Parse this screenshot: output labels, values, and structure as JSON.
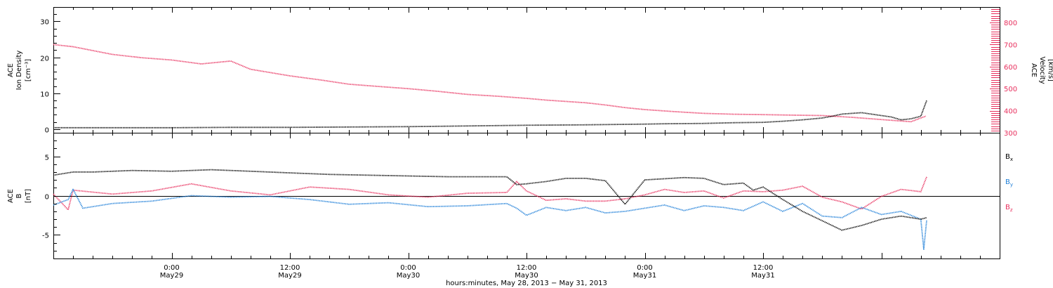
{
  "chart_data": [
    {
      "type": "scatter",
      "title": "",
      "ylabel_lines": [
        "ACE",
        "Ion Density",
        "[cm⁻³]"
      ],
      "ylabel_right_lines": [
        "ACE",
        "Velocity",
        "[km/s]"
      ],
      "ylim": [
        -1,
        34
      ],
      "y_ticks": [
        "0",
        "10",
        "20",
        "30"
      ],
      "ylim_right": [
        300,
        870
      ],
      "y_ticks_right": [
        "300",
        "400",
        "500",
        "600",
        "700",
        "800"
      ],
      "colors": {
        "density": "#000000",
        "velocity": "#e8305e"
      },
      "series": [
        {
          "axis": "left",
          "hours": [
            0,
            6,
            12,
            18,
            24,
            30,
            36,
            42,
            48,
            54,
            60,
            62,
            66,
            69,
            72,
            74,
            76,
            78,
            79,
            80,
            82,
            84,
            85,
            86,
            87,
            88,
            88.6
          ],
          "values": [
            0.4,
            0.4,
            0.4,
            0.5,
            0.5,
            0.6,
            0.7,
            0.9,
            1.1,
            1.2,
            1.4,
            1.5,
            1.6,
            1.8,
            1.9,
            2.2,
            2.6,
            3.1,
            3.6,
            4.2,
            4.6,
            3.8,
            3.4,
            2.6,
            2.9,
            3.6,
            8.0
          ]
        },
        {
          "axis": "right",
          "hours": [
            0,
            2,
            6,
            9,
            12,
            15,
            18,
            20,
            24,
            27,
            30,
            33,
            36,
            39,
            42,
            45,
            48,
            50,
            52,
            54,
            56,
            58,
            60,
            63,
            66,
            69,
            72,
            75,
            78,
            81,
            84,
            87,
            88.5
          ],
          "values": [
            700,
            690,
            655,
            640,
            630,
            612,
            625,
            588,
            558,
            540,
            520,
            510,
            500,
            488,
            474,
            466,
            456,
            448,
            442,
            436,
            426,
            414,
            405,
            396,
            388,
            384,
            382,
            380,
            378,
            370,
            360,
            350,
            375
          ]
        }
      ]
    },
    {
      "type": "scatter",
      "title": "",
      "ylabel_lines": [
        "ACE",
        "B",
        "[nT]"
      ],
      "ylim": [
        -8,
        8
      ],
      "y_ticks": [
        "-5",
        "0",
        "5"
      ],
      "zero_line": true,
      "legend": [
        {
          "name": "B",
          "sub": "x",
          "color": "#000000"
        },
        {
          "name": "B",
          "sub": "y",
          "color": "#1f7fd8"
        },
        {
          "name": "B",
          "sub": "z",
          "color": "#e8305e"
        }
      ],
      "series": [
        {
          "name": "Bx",
          "color": "#000000",
          "hours": [
            0,
            2,
            4,
            8,
            12,
            16,
            20,
            24,
            28,
            32,
            36,
            40,
            44,
            46,
            47,
            48,
            50,
            52,
            54,
            56,
            58,
            60,
            64,
            66,
            68,
            70,
            71,
            72,
            74,
            76,
            78,
            80,
            82,
            84,
            86,
            88,
            88.6
          ],
          "values": [
            2.6,
            3.0,
            3.0,
            3.2,
            3.1,
            3.3,
            3.1,
            2.9,
            2.7,
            2.6,
            2.5,
            2.4,
            2.4,
            2.4,
            1.4,
            1.5,
            1.8,
            2.2,
            2.2,
            1.9,
            -1.1,
            2.0,
            2.3,
            2.2,
            1.4,
            1.6,
            0.7,
            1.1,
            -0.5,
            -2.0,
            -3.2,
            -4.4,
            -3.8,
            -3.0,
            -2.6,
            -3.0,
            -2.8
          ]
        },
        {
          "name": "By",
          "color": "#1f7fd8",
          "hours": [
            0,
            1.5,
            2,
            3,
            6,
            10,
            14,
            18,
            22,
            26,
            30,
            34,
            38,
            42,
            46,
            47,
            48,
            49,
            50,
            52,
            54,
            56,
            58,
            60,
            62,
            64,
            66,
            68,
            70,
            72,
            74,
            76,
            78,
            80,
            82,
            84,
            86,
            88,
            88.3,
            88.6
          ],
          "values": [
            -1.2,
            -0.5,
            0.8,
            -1.6,
            -1.0,
            -0.7,
            0.0,
            -0.2,
            -0.1,
            -0.5,
            -1.1,
            -0.9,
            -1.4,
            -1.3,
            -1.0,
            -1.6,
            -2.5,
            -2.0,
            -1.5,
            -1.9,
            -1.5,
            -2.2,
            -2.0,
            -1.6,
            -1.2,
            -1.9,
            -1.3,
            -1.5,
            -1.9,
            -0.8,
            -2.0,
            -1.0,
            -2.6,
            -2.8,
            -1.5,
            -2.4,
            -2.0,
            -3.0,
            -6.8,
            -3.1
          ]
        },
        {
          "name": "Bz",
          "color": "#e8305e",
          "hours": [
            0,
            1.5,
            2,
            6,
            10,
            14,
            18,
            22,
            26,
            30,
            34,
            38,
            42,
            46,
            47,
            48,
            50,
            52,
            54,
            56,
            58,
            60,
            62,
            64,
            66,
            68,
            70,
            72,
            74,
            76,
            78,
            80,
            82,
            84,
            86,
            88,
            88.6
          ],
          "values": [
            0.2,
            -1.8,
            0.7,
            0.2,
            0.6,
            1.5,
            0.6,
            0.1,
            1.1,
            0.8,
            0.1,
            -0.2,
            0.3,
            0.4,
            1.8,
            0.6,
            -0.6,
            -0.4,
            -0.7,
            -0.7,
            -0.4,
            0.1,
            0.8,
            0.4,
            0.6,
            -0.3,
            0.6,
            0.5,
            0.7,
            1.2,
            -0.2,
            -0.8,
            -1.7,
            -0.1,
            0.8,
            0.5,
            2.4
          ]
        }
      ]
    }
  ],
  "x_axis": {
    "range_hours": [
      0,
      96
    ],
    "ticks": [
      {
        "hours": 12,
        "time": "0:00",
        "date": "May29"
      },
      {
        "hours": 24,
        "time": "12:00",
        "date": "May29"
      },
      {
        "hours": 36,
        "time": "0:00",
        "date": "May30"
      },
      {
        "hours": 48,
        "time": "12:00",
        "date": "May30"
      },
      {
        "hours": 60,
        "time": "0:00",
        "date": "May31"
      },
      {
        "hours": 72,
        "time": "12:00",
        "date": "May31"
      }
    ],
    "label": "hours:minutes, May 28, 2013 − May 31, 2013"
  }
}
